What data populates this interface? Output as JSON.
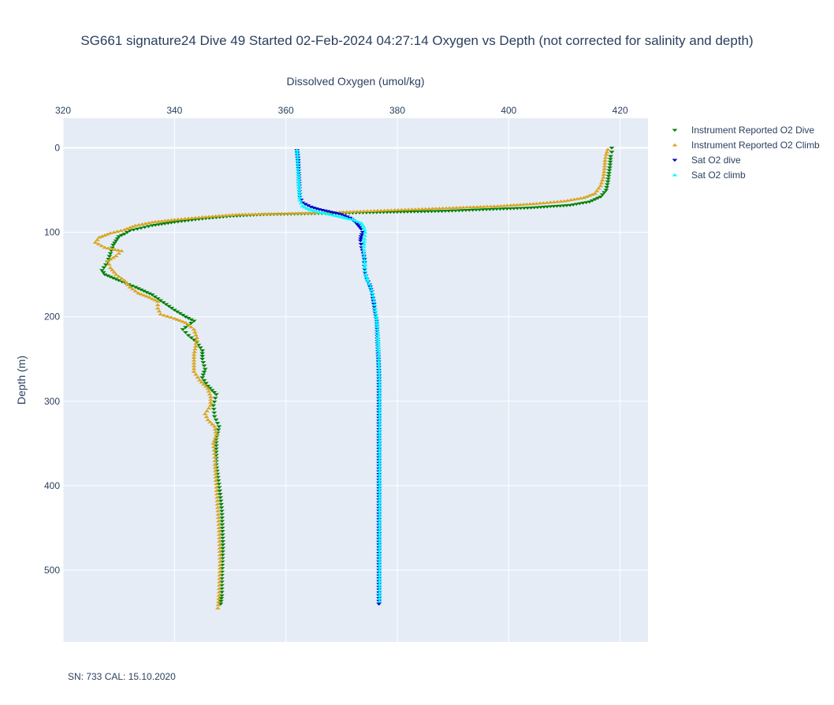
{
  "chart_data": {
    "type": "scatter",
    "title": "SG661 signature24 Dive 49 Started 02-Feb-2024 04:27:14  Oxygen vs Depth (not corrected for salinity and depth)",
    "xlabel": "Dissolved Oxygen (umol/kg)",
    "ylabel": "Depth (m)",
    "x_axis_position": "top",
    "xlim": [
      320,
      425
    ],
    "ylim": [
      585,
      -35
    ],
    "y_reversed": true,
    "x_ticks": [
      320,
      340,
      360,
      380,
      400,
      420
    ],
    "y_ticks": [
      0,
      100,
      200,
      300,
      400,
      500
    ],
    "grid": true,
    "legend_position": "top-right",
    "footnote": "SN: 733  CAL: 15.10.2020",
    "series": [
      {
        "name": "Instrument Reported O2 Dive",
        "color": "#008000",
        "marker": "triangle-down",
        "points": [
          [
            418.5,
            0
          ],
          [
            418.5,
            5
          ],
          [
            418.3,
            10
          ],
          [
            418.2,
            20
          ],
          [
            418.0,
            30
          ],
          [
            417.8,
            40
          ],
          [
            417.5,
            50
          ],
          [
            416.5,
            58
          ],
          [
            414.5,
            64
          ],
          [
            411,
            68
          ],
          [
            404,
            71
          ],
          [
            396,
            73
          ],
          [
            388,
            75
          ],
          [
            380,
            76
          ],
          [
            372,
            77
          ],
          [
            364,
            78
          ],
          [
            356,
            79
          ],
          [
            350,
            81
          ],
          [
            345,
            84
          ],
          [
            340,
            88
          ],
          [
            336,
            92
          ],
          [
            334,
            95
          ],
          [
            332,
            98
          ],
          [
            331,
            102
          ],
          [
            330,
            105
          ],
          [
            329.5,
            110
          ],
          [
            329,
            115
          ],
          [
            328.5,
            125
          ],
          [
            328,
            135
          ],
          [
            327,
            145
          ],
          [
            327.5,
            150
          ],
          [
            330,
            157
          ],
          [
            333,
            165
          ],
          [
            336,
            174
          ],
          [
            338,
            183
          ],
          [
            340,
            192
          ],
          [
            342,
            200
          ],
          [
            343.5,
            205
          ],
          [
            341.5,
            215
          ],
          [
            342.5,
            222
          ],
          [
            344,
            230
          ],
          [
            345,
            240
          ],
          [
            345,
            250
          ],
          [
            345.5,
            262
          ],
          [
            345,
            272
          ],
          [
            346,
            282
          ],
          [
            347.5,
            292
          ],
          [
            347,
            305
          ],
          [
            347.2,
            318
          ],
          [
            348,
            330
          ],
          [
            347.5,
            345
          ],
          [
            347.5,
            360
          ],
          [
            347.5,
            375
          ],
          [
            347.8,
            390
          ],
          [
            348.2,
            410
          ],
          [
            348.5,
            430
          ],
          [
            348.6,
            450
          ],
          [
            348.7,
            470
          ],
          [
            348.6,
            490
          ],
          [
            348.5,
            510
          ],
          [
            348.5,
            530
          ],
          [
            348.3,
            540
          ]
        ]
      },
      {
        "name": "Instrument Reported O2 Climb",
        "color": "#DAA520",
        "marker": "triangle-up",
        "points": [
          [
            347.8,
            545
          ],
          [
            348,
            530
          ],
          [
            348.1,
            510
          ],
          [
            348.2,
            490
          ],
          [
            348.1,
            470
          ],
          [
            348,
            450
          ],
          [
            347.8,
            430
          ],
          [
            347.6,
            410
          ],
          [
            347.4,
            390
          ],
          [
            347.3,
            375
          ],
          [
            347.2,
            362
          ],
          [
            347,
            350
          ],
          [
            347.5,
            340
          ],
          [
            347.2,
            330
          ],
          [
            346,
            322
          ],
          [
            345.5,
            315
          ],
          [
            346.5,
            305
          ],
          [
            346.5,
            295
          ],
          [
            346,
            285
          ],
          [
            344.5,
            275
          ],
          [
            343.5,
            265
          ],
          [
            343.5,
            255
          ],
          [
            343.5,
            245
          ],
          [
            343.8,
            235
          ],
          [
            344,
            225
          ],
          [
            343.5,
            215
          ],
          [
            342,
            207
          ],
          [
            340,
            202
          ],
          [
            337.5,
            197
          ],
          [
            337,
            190
          ],
          [
            337,
            182
          ],
          [
            335.5,
            177
          ],
          [
            333.5,
            172
          ],
          [
            332,
            165
          ],
          [
            331,
            157
          ],
          [
            329.5,
            150
          ],
          [
            328.5,
            142
          ],
          [
            328,
            134
          ],
          [
            329.5,
            128
          ],
          [
            330.5,
            122
          ],
          [
            327.5,
            118
          ],
          [
            325.8,
            112
          ],
          [
            326.5,
            106
          ],
          [
            328.5,
            101
          ],
          [
            331,
            97
          ],
          [
            333,
            92
          ],
          [
            336,
            88
          ],
          [
            340,
            85
          ],
          [
            345,
            82
          ],
          [
            351,
            79
          ],
          [
            358,
            78
          ],
          [
            366,
            77
          ],
          [
            374,
            75
          ],
          [
            382,
            73
          ],
          [
            390,
            71
          ],
          [
            398,
            69
          ],
          [
            405,
            66
          ],
          [
            410,
            63
          ],
          [
            413.5,
            59
          ],
          [
            415.5,
            54
          ],
          [
            416.5,
            45
          ],
          [
            417,
            35
          ],
          [
            417.2,
            25
          ],
          [
            417.3,
            15
          ],
          [
            417.5,
            8
          ],
          [
            417.8,
            2
          ]
        ]
      },
      {
        "name": "Sat O2 dive",
        "color": "#0000CD",
        "marker": "triangle-down",
        "points": [
          [
            362,
            3
          ],
          [
            362.2,
            15
          ],
          [
            362.3,
            30
          ],
          [
            362.4,
            45
          ],
          [
            362.5,
            58
          ],
          [
            363,
            65
          ],
          [
            364.5,
            70
          ],
          [
            366,
            73
          ],
          [
            368,
            76
          ],
          [
            370,
            79
          ],
          [
            371.5,
            83
          ],
          [
            372.5,
            88
          ],
          [
            373,
            92
          ],
          [
            373.5,
            96
          ],
          [
            373.8,
            100
          ],
          [
            373.5,
            105
          ],
          [
            373.4,
            110
          ],
          [
            373.6,
            118
          ],
          [
            373.9,
            125
          ],
          [
            374.1,
            132
          ],
          [
            374.1,
            140
          ],
          [
            374.2,
            148
          ],
          [
            374.5,
            155
          ],
          [
            375,
            162
          ],
          [
            375.4,
            170
          ],
          [
            375.6,
            178
          ],
          [
            375.8,
            185
          ],
          [
            376,
            195
          ],
          [
            376.3,
            205
          ],
          [
            376.4,
            220
          ],
          [
            376.5,
            235
          ],
          [
            376.6,
            250
          ],
          [
            376.7,
            270
          ],
          [
            376.7,
            290
          ],
          [
            376.7,
            310
          ],
          [
            376.7,
            330
          ],
          [
            376.7,
            350
          ],
          [
            376.7,
            370
          ],
          [
            376.7,
            390
          ],
          [
            376.7,
            410
          ],
          [
            376.7,
            430
          ],
          [
            376.7,
            450
          ],
          [
            376.7,
            470
          ],
          [
            376.7,
            490
          ],
          [
            376.7,
            510
          ],
          [
            376.7,
            530
          ],
          [
            376.7,
            540
          ]
        ]
      },
      {
        "name": "Sat O2 climb",
        "color": "#00FFFF",
        "marker": "triangle-up",
        "points": [
          [
            376.8,
            537
          ],
          [
            376.8,
            520
          ],
          [
            376.8,
            500
          ],
          [
            376.8,
            480
          ],
          [
            376.8,
            460
          ],
          [
            376.8,
            440
          ],
          [
            376.8,
            420
          ],
          [
            376.8,
            400
          ],
          [
            376.8,
            380
          ],
          [
            376.8,
            360
          ],
          [
            376.8,
            340
          ],
          [
            376.8,
            320
          ],
          [
            376.8,
            300
          ],
          [
            376.8,
            280
          ],
          [
            376.7,
            260
          ],
          [
            376.6,
            240
          ],
          [
            376.5,
            225
          ],
          [
            376.4,
            212
          ],
          [
            376.2,
            200
          ],
          [
            376,
            190
          ],
          [
            375.8,
            182
          ],
          [
            375.5,
            172
          ],
          [
            375.2,
            165
          ],
          [
            374.7,
            158
          ],
          [
            374.3,
            150
          ],
          [
            374.2,
            142
          ],
          [
            374.1,
            133
          ],
          [
            374,
            125
          ],
          [
            374,
            117
          ],
          [
            374.1,
            108
          ],
          [
            374.2,
            100
          ],
          [
            374,
            94
          ],
          [
            373.5,
            89
          ],
          [
            372,
            85
          ],
          [
            370,
            82
          ],
          [
            368,
            79
          ],
          [
            366,
            76
          ],
          [
            364.2,
            73
          ],
          [
            363,
            69
          ],
          [
            362.5,
            62
          ],
          [
            362.4,
            50
          ],
          [
            362.3,
            38
          ],
          [
            362.2,
            25
          ],
          [
            362.1,
            12
          ],
          [
            362,
            3
          ]
        ]
      }
    ]
  }
}
